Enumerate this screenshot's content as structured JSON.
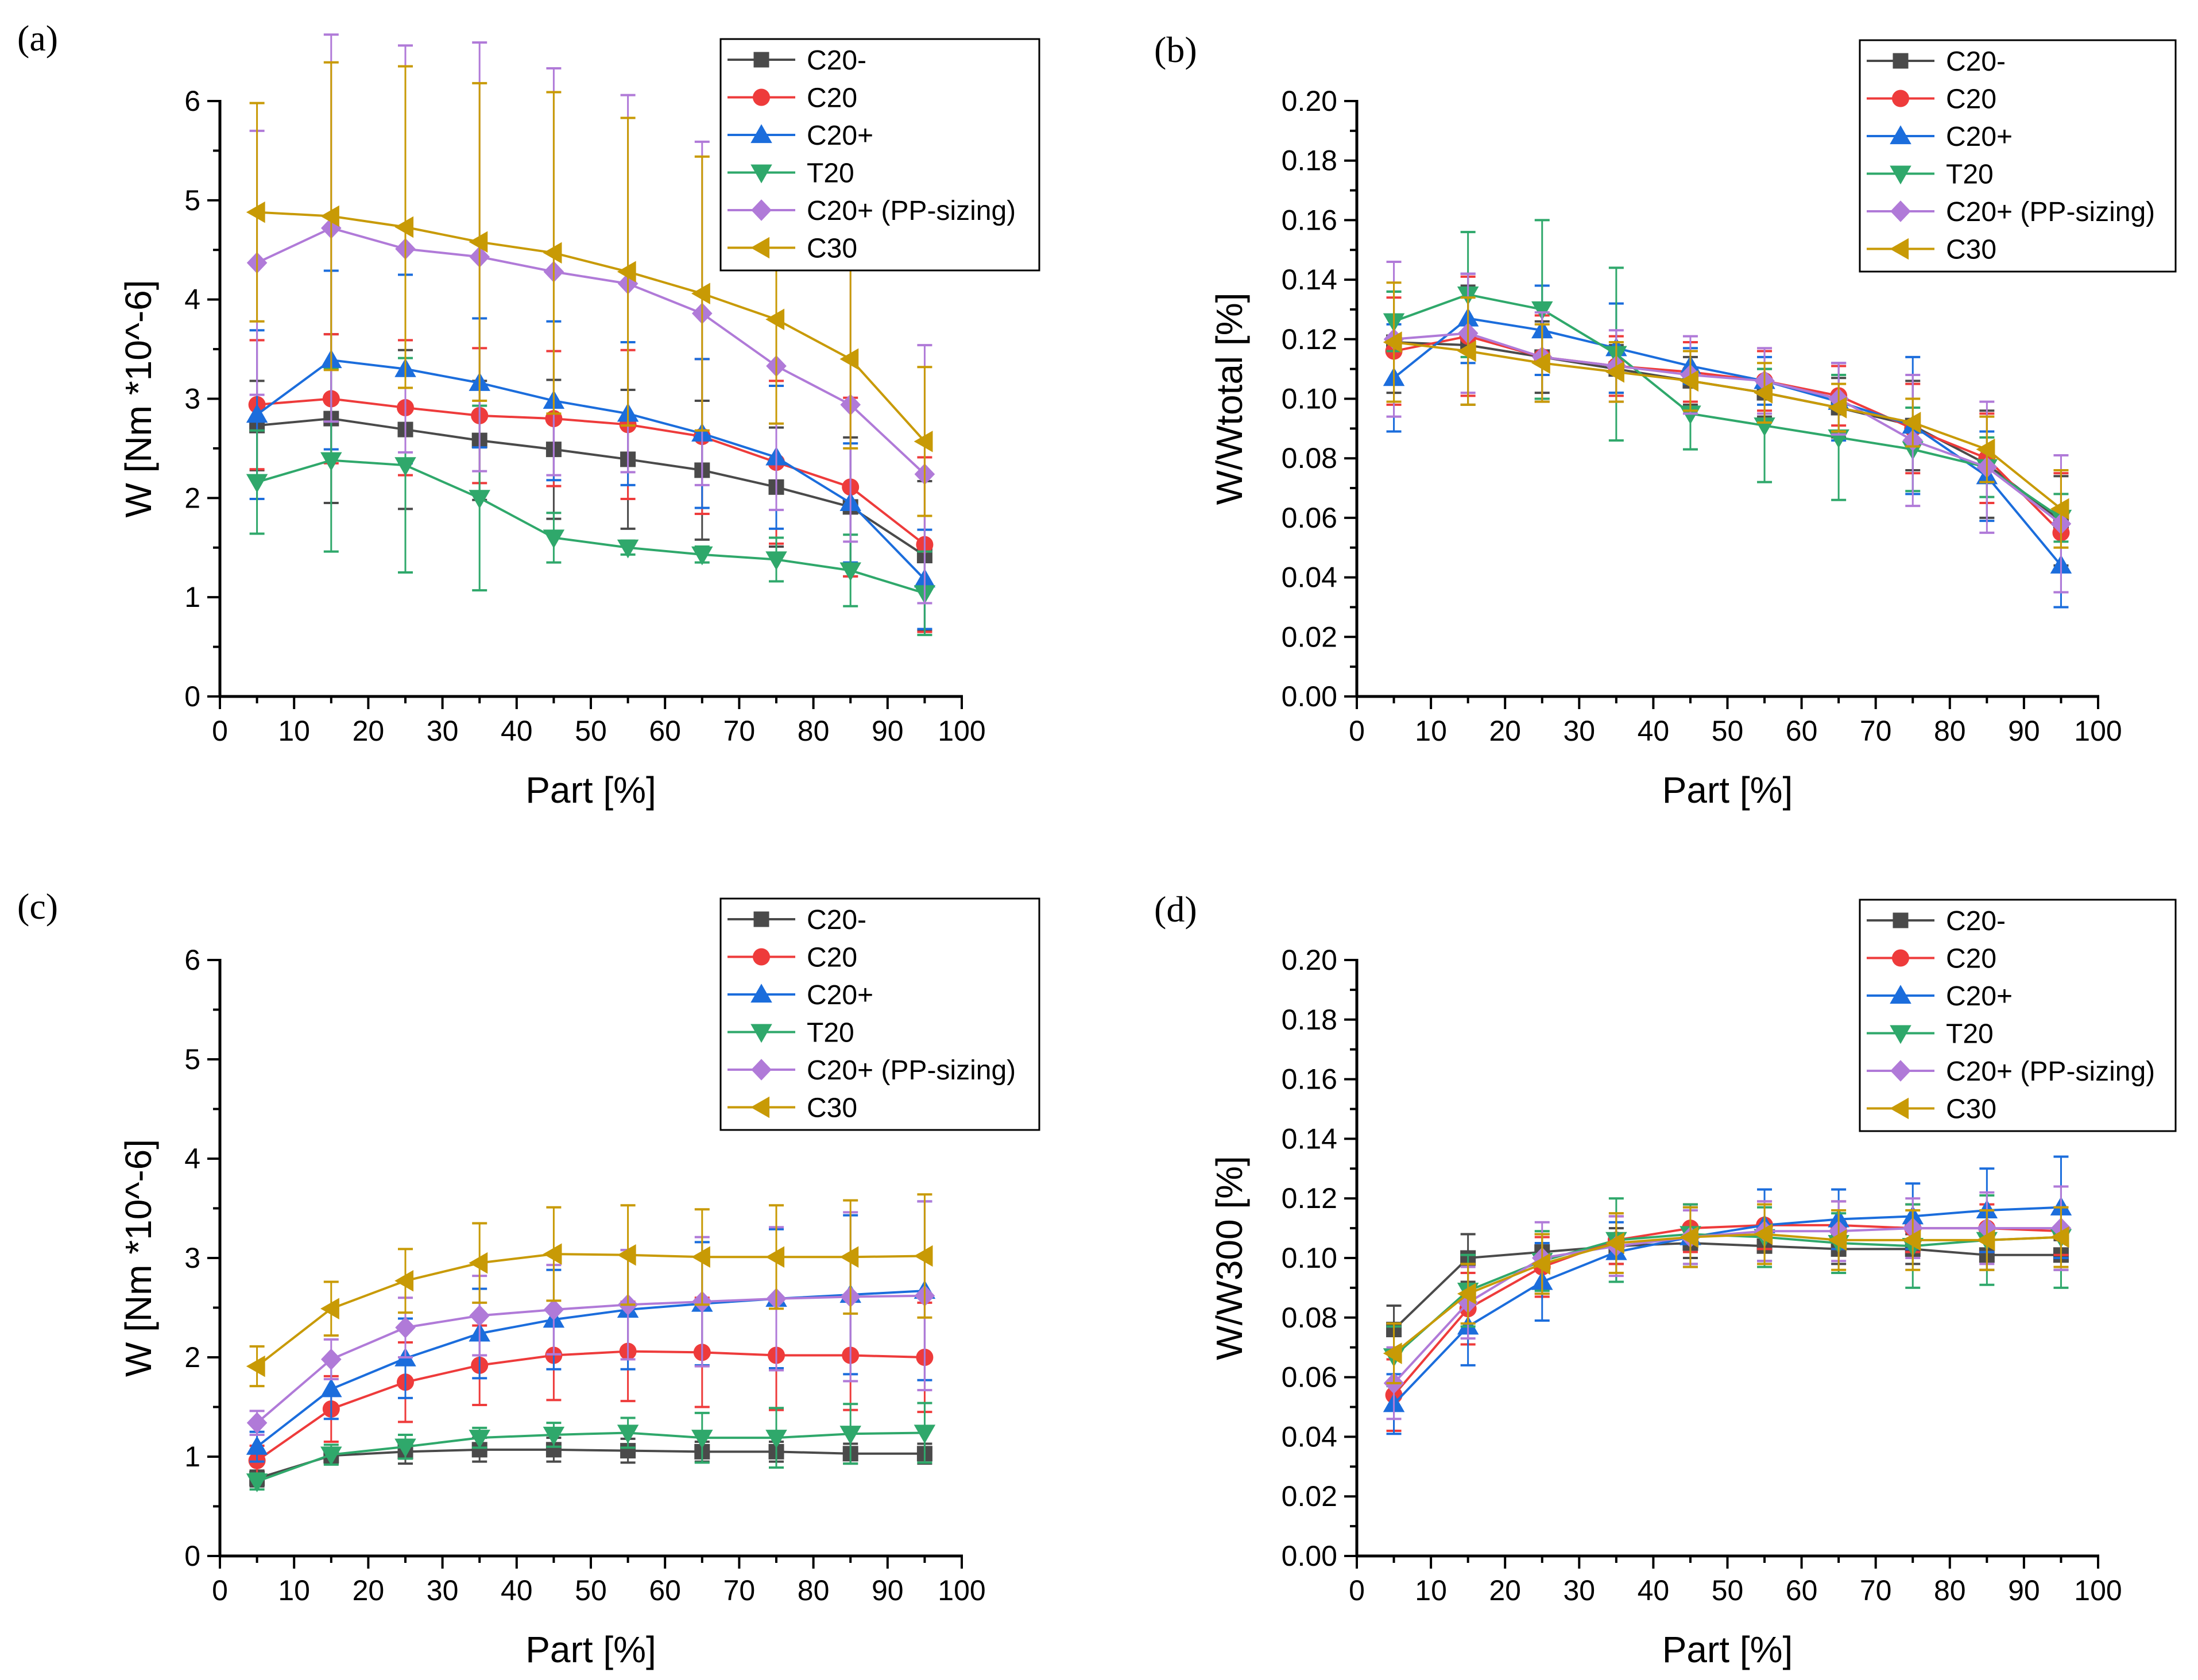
{
  "colors": {
    "C20-": "#4a4a4a",
    "C20": "#ee3b3b",
    "C20+": "#1b6ddc",
    "T20": "#2fa86b",
    "C20+ (PP-sizing)": "#b07ad8",
    "C30": "#c89a05"
  },
  "chart_data": [
    {
      "panel": "(a)",
      "type": "line",
      "xlabel": "Part [%]",
      "ylabel": "W [Nm *10^-6]",
      "xlim": [
        0,
        100
      ],
      "ylim": [
        0,
        6
      ],
      "xticks": [
        0,
        10,
        20,
        30,
        40,
        50,
        60,
        70,
        80,
        90,
        100
      ],
      "yticks": [
        0,
        1,
        2,
        3,
        4,
        5,
        6
      ],
      "ydec": 0,
      "legend_position": "top-right",
      "x": [
        5,
        15,
        25,
        35,
        45,
        55,
        65,
        75,
        85,
        95
      ],
      "series": [
        {
          "name": "C20-",
          "marker": "square",
          "values": [
            2.73,
            2.8,
            2.69,
            2.58,
            2.49,
            2.39,
            2.28,
            2.11,
            1.91,
            1.42
          ],
          "err": [
            0.45,
            0.85,
            0.8,
            0.6,
            0.7,
            0.7,
            0.7,
            0.6,
            0.7,
            0.75
          ]
        },
        {
          "name": "C20",
          "marker": "circle",
          "values": [
            2.94,
            3.0,
            2.91,
            2.83,
            2.8,
            2.74,
            2.62,
            2.36,
            2.11,
            1.53
          ],
          "err": [
            0.65,
            0.65,
            0.68,
            0.68,
            0.68,
            0.75,
            0.78,
            0.82,
            0.9,
            0.88
          ]
        },
        {
          "name": "C20+",
          "marker": "triangle-up",
          "values": [
            2.84,
            3.39,
            3.3,
            3.16,
            2.98,
            2.85,
            2.65,
            2.41,
            1.95,
            1.18
          ],
          "err": [
            0.85,
            0.9,
            0.95,
            0.65,
            0.8,
            0.72,
            0.75,
            0.72,
            0.6,
            0.5
          ]
        },
        {
          "name": "T20",
          "marker": "triangle-down",
          "values": [
            2.16,
            2.38,
            2.33,
            2.0,
            1.6,
            1.5,
            1.43,
            1.38,
            1.27,
            1.04
          ],
          "err": [
            0.52,
            0.92,
            1.08,
            0.93,
            0.25,
            0.07,
            0.08,
            0.22,
            0.36,
            0.42
          ]
        },
        {
          "name": "C20+ (PP-sizing)",
          "marker": "diamond",
          "values": [
            4.37,
            4.72,
            4.51,
            4.43,
            4.28,
            4.16,
            3.86,
            3.33,
            2.94,
            2.24
          ],
          "err": [
            1.33,
            1.95,
            2.05,
            2.16,
            2.05,
            1.9,
            1.73,
            1.45,
            1.38,
            1.3
          ]
        },
        {
          "name": "C30",
          "marker": "triangle-left",
          "values": [
            4.88,
            4.84,
            4.73,
            4.58,
            4.47,
            4.28,
            4.06,
            3.8,
            3.4,
            2.57
          ],
          "err": [
            1.1,
            1.55,
            1.62,
            1.6,
            1.62,
            1.55,
            1.38,
            1.05,
            0.9,
            0.75
          ]
        }
      ]
    },
    {
      "panel": "(b)",
      "type": "line",
      "xlabel": "Part [%]",
      "ylabel": "W/Wtotal [%]",
      "xlim": [
        0,
        100
      ],
      "ylim": [
        0,
        0.2
      ],
      "xticks": [
        0,
        10,
        20,
        30,
        40,
        50,
        60,
        70,
        80,
        90,
        100
      ],
      "yticks": [
        0,
        0.02,
        0.04,
        0.06,
        0.08,
        0.1,
        0.12,
        0.14,
        0.16,
        0.18,
        0.2
      ],
      "ydec": 2,
      "legend_position": "top-right",
      "x": [
        5,
        15,
        25,
        35,
        45,
        55,
        65,
        75,
        85,
        95
      ],
      "series": [
        {
          "name": "C20-",
          "marker": "square",
          "values": [
            0.119,
            0.118,
            0.114,
            0.11,
            0.106,
            0.102,
            0.097,
            0.091,
            0.078,
            0.059
          ],
          "err": [
            0.017,
            0.02,
            0.012,
            0.008,
            0.008,
            0.008,
            0.01,
            0.015,
            0.018,
            0.015
          ]
        },
        {
          "name": "C20",
          "marker": "circle",
          "values": [
            0.116,
            0.121,
            0.114,
            0.111,
            0.109,
            0.106,
            0.101,
            0.09,
            0.08,
            0.055
          ],
          "err": [
            0.018,
            0.02,
            0.014,
            0.01,
            0.01,
            0.01,
            0.01,
            0.015,
            0.015,
            0.02
          ]
        },
        {
          "name": "C20+",
          "marker": "triangle-up",
          "values": [
            0.107,
            0.127,
            0.123,
            0.117,
            0.111,
            0.106,
            0.099,
            0.091,
            0.074,
            0.044
          ],
          "err": [
            0.018,
            0.015,
            0.015,
            0.015,
            0.006,
            0.008,
            0.013,
            0.023,
            0.015,
            0.014
          ]
        },
        {
          "name": "T20",
          "marker": "triangle-down",
          "values": [
            0.126,
            0.135,
            0.13,
            0.115,
            0.095,
            0.091,
            0.087,
            0.083,
            0.077,
            0.06
          ],
          "err": [
            0.01,
            0.021,
            0.03,
            0.029,
            0.012,
            0.019,
            0.021,
            0.014,
            0.01,
            0.008
          ]
        },
        {
          "name": "C20+ (PP-sizing)",
          "marker": "diamond",
          "values": [
            0.12,
            0.122,
            0.114,
            0.111,
            0.108,
            0.106,
            0.1,
            0.086,
            0.077,
            0.058
          ],
          "err": [
            0.026,
            0.02,
            0.015,
            0.012,
            0.013,
            0.011,
            0.012,
            0.022,
            0.022,
            0.023
          ]
        },
        {
          "name": "C30",
          "marker": "triangle-left",
          "values": [
            0.119,
            0.116,
            0.112,
            0.109,
            0.106,
            0.102,
            0.097,
            0.092,
            0.083,
            0.063
          ],
          "err": [
            0.02,
            0.018,
            0.013,
            0.01,
            0.01,
            0.01,
            0.008,
            0.008,
            0.011,
            0.013
          ]
        }
      ]
    },
    {
      "panel": "(c)",
      "type": "line",
      "xlabel": "Part [%]",
      "ylabel": "W [Nm *10^-6]",
      "xlim": [
        0,
        100
      ],
      "ylim": [
        0,
        6
      ],
      "xticks": [
        0,
        10,
        20,
        30,
        40,
        50,
        60,
        70,
        80,
        90,
        100
      ],
      "yticks": [
        0,
        1,
        2,
        3,
        4,
        5,
        6
      ],
      "ydec": 0,
      "legend_position": "top-right",
      "x": [
        5,
        15,
        25,
        35,
        45,
        55,
        65,
        75,
        85,
        95
      ],
      "series": [
        {
          "name": "C20-",
          "marker": "square",
          "values": [
            0.78,
            1.01,
            1.05,
            1.07,
            1.07,
            1.06,
            1.05,
            1.05,
            1.03,
            1.03
          ],
          "err": [
            0.08,
            0.08,
            0.12,
            0.12,
            0.12,
            0.12,
            0.1,
            0.1,
            0.1,
            0.1
          ]
        },
        {
          "name": "C20",
          "marker": "circle",
          "values": [
            0.96,
            1.48,
            1.75,
            1.92,
            2.02,
            2.06,
            2.05,
            2.02,
            2.02,
            2.0
          ],
          "err": [
            0.15,
            0.33,
            0.4,
            0.4,
            0.45,
            0.5,
            0.55,
            0.55,
            0.55,
            0.55
          ]
        },
        {
          "name": "C20+",
          "marker": "triangle-up",
          "values": [
            1.1,
            1.68,
            1.99,
            2.24,
            2.38,
            2.48,
            2.54,
            2.59,
            2.63,
            2.67
          ],
          "err": [
            0.15,
            0.3,
            0.4,
            0.45,
            0.5,
            0.6,
            0.62,
            0.7,
            0.8,
            0.9
          ]
        },
        {
          "name": "T20",
          "marker": "triangle-down",
          "values": [
            0.75,
            1.02,
            1.1,
            1.19,
            1.22,
            1.24,
            1.19,
            1.19,
            1.23,
            1.24
          ],
          "err": [
            0.08,
            0.1,
            0.12,
            0.1,
            0.12,
            0.15,
            0.25,
            0.3,
            0.3,
            0.3
          ]
        },
        {
          "name": "C20+ (PP-sizing)",
          "marker": "diamond",
          "values": [
            1.34,
            1.98,
            2.3,
            2.42,
            2.48,
            2.53,
            2.56,
            2.59,
            2.61,
            2.62
          ],
          "err": [
            0.12,
            0.2,
            0.3,
            0.4,
            0.45,
            0.55,
            0.65,
            0.72,
            0.85,
            0.95
          ]
        },
        {
          "name": "C30",
          "marker": "triangle-left",
          "values": [
            1.91,
            2.49,
            2.77,
            2.95,
            3.04,
            3.03,
            3.01,
            3.01,
            3.01,
            3.02
          ],
          "err": [
            0.2,
            0.27,
            0.32,
            0.4,
            0.47,
            0.5,
            0.48,
            0.52,
            0.57,
            0.62
          ]
        }
      ]
    },
    {
      "panel": "(d)",
      "type": "line",
      "xlabel": "Part [%]",
      "ylabel": "W/W300 [%]",
      "xlim": [
        0,
        100
      ],
      "ylim": [
        0,
        0.2
      ],
      "xticks": [
        0,
        10,
        20,
        30,
        40,
        50,
        60,
        70,
        80,
        90,
        100
      ],
      "yticks": [
        0,
        0.02,
        0.04,
        0.06,
        0.08,
        0.1,
        0.12,
        0.14,
        0.16,
        0.18,
        0.2
      ],
      "ydec": 2,
      "legend_position": "top-right",
      "x": [
        5,
        15,
        25,
        35,
        45,
        55,
        65,
        75,
        85,
        95
      ],
      "series": [
        {
          "name": "C20-",
          "marker": "square",
          "values": [
            0.076,
            0.1,
            0.102,
            0.104,
            0.105,
            0.104,
            0.103,
            0.103,
            0.101,
            0.101
          ],
          "err": [
            0.008,
            0.008,
            0.006,
            0.006,
            0.005,
            0.005,
            0.005,
            0.005,
            0.005,
            0.005
          ]
        },
        {
          "name": "C20",
          "marker": "circle",
          "values": [
            0.054,
            0.083,
            0.097,
            0.106,
            0.11,
            0.111,
            0.111,
            0.11,
            0.11,
            0.109
          ],
          "err": [
            0.012,
            0.012,
            0.01,
            0.008,
            0.008,
            0.008,
            0.008,
            0.008,
            0.008,
            0.008
          ]
        },
        {
          "name": "C20+",
          "marker": "triangle-up",
          "values": [
            0.051,
            0.077,
            0.092,
            0.102,
            0.107,
            0.111,
            0.113,
            0.114,
            0.116,
            0.117
          ],
          "err": [
            0.01,
            0.013,
            0.013,
            0.01,
            0.01,
            0.012,
            0.01,
            0.011,
            0.014,
            0.017
          ]
        },
        {
          "name": "T20",
          "marker": "triangle-down",
          "values": [
            0.067,
            0.089,
            0.099,
            0.106,
            0.108,
            0.107,
            0.105,
            0.104,
            0.106,
            0.107
          ],
          "err": [
            0.01,
            0.012,
            0.01,
            0.014,
            0.01,
            0.01,
            0.01,
            0.014,
            0.015,
            0.017
          ]
        },
        {
          "name": "C20+ (PP-sizing)",
          "marker": "diamond",
          "values": [
            0.058,
            0.085,
            0.1,
            0.104,
            0.107,
            0.109,
            0.109,
            0.11,
            0.11,
            0.11
          ],
          "err": [
            0.012,
            0.012,
            0.012,
            0.01,
            0.009,
            0.01,
            0.01,
            0.01,
            0.012,
            0.014
          ]
        },
        {
          "name": "C30",
          "marker": "triangle-left",
          "values": [
            0.068,
            0.088,
            0.098,
            0.105,
            0.107,
            0.108,
            0.106,
            0.106,
            0.106,
            0.107
          ],
          "err": [
            0.01,
            0.01,
            0.01,
            0.01,
            0.01,
            0.01,
            0.01,
            0.01,
            0.01,
            0.01
          ]
        }
      ]
    }
  ]
}
